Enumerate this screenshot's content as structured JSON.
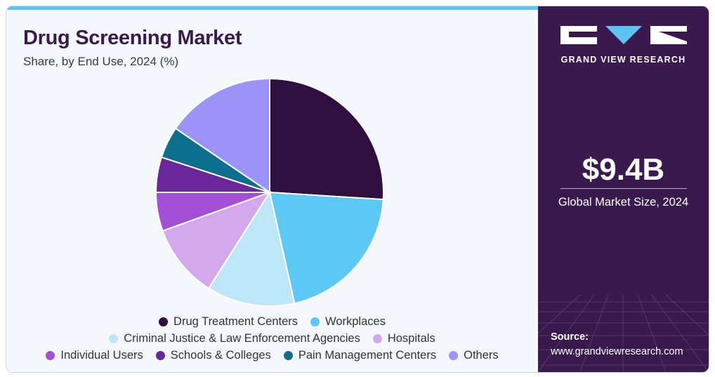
{
  "header": {
    "title": "Drug Screening Market",
    "subtitle": "Share, by End Use, 2024 (%)"
  },
  "chart_data": {
    "type": "pie",
    "title": "Drug Screening Market",
    "subtitle": "Share, by End Use, 2024 (%)",
    "legend_position": "bottom",
    "slices": [
      {
        "label": "Drug Treatment Centers",
        "value": 26.0,
        "color": "#2e0f3f"
      },
      {
        "label": "Workplaces",
        "value": 20.5,
        "color": "#5bc8f5"
      },
      {
        "label": "Criminal Justice & Law Enforcement Agencies",
        "value": 12.5,
        "color": "#bde7f9"
      },
      {
        "label": "Hospitals",
        "value": 10.5,
        "color": "#d4a8ec"
      },
      {
        "label": "Individual Users",
        "value": 5.5,
        "color": "#a34fd6"
      },
      {
        "label": "Schools & Colleges",
        "value": 5.0,
        "color": "#6a269b"
      },
      {
        "label": "Pain Management Centers",
        "value": 4.5,
        "color": "#0d6f8e"
      },
      {
        "label": "Others",
        "value": 15.5,
        "color": "#9b93f8"
      }
    ]
  },
  "sidebar": {
    "brand": "GRAND VIEW RESEARCH",
    "market_size": "$9.4B",
    "market_size_caption": "Global Market Size, 2024",
    "source_label": "Source:",
    "source_url": "www.grandviewresearch.com"
  },
  "colors": {
    "panel": "#3a1a4e",
    "accent": "#5bc4f0",
    "background": "#f4f7fb"
  }
}
